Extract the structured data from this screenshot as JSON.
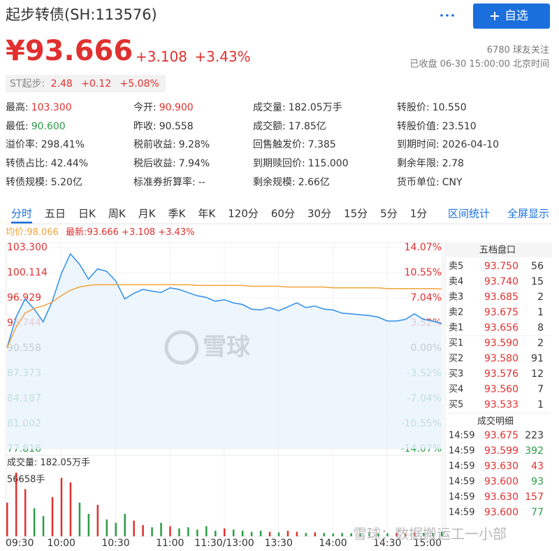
{
  "header": {
    "title": "起步转债(SH:113576)",
    "button": "自选",
    "followers": "6780 球友关注",
    "status": "已收盘 06-30 15:00:00 北京时间"
  },
  "quote": {
    "price": "¥93.666",
    "change": "+3.108",
    "percent": "+3.43%"
  },
  "underlying": {
    "label": "ST起步:",
    "price": "2.48",
    "change": "+0.12",
    "percent": "+5.08%"
  },
  "stats": [
    {
      "label": "最高:",
      "value": "103.300",
      "color": "#e0302f"
    },
    {
      "label": "今开:",
      "value": "90.900",
      "color": "#e0302f"
    },
    {
      "label": "成交量:",
      "value": "182.05万手",
      "color": "#333333"
    },
    {
      "label": "转股价:",
      "value": "10.550",
      "color": "#333333"
    },
    {
      "label": "最低:",
      "value": "90.600",
      "color": "#2a9d46"
    },
    {
      "label": "昨收:",
      "value": "90.558",
      "color": "#333333"
    },
    {
      "label": "成交额:",
      "value": "17.85亿",
      "color": "#333333"
    },
    {
      "label": "转股价值:",
      "value": "23.510",
      "color": "#333333"
    },
    {
      "label": "溢价率:",
      "value": "298.41%",
      "color": "#333333"
    },
    {
      "label": "税前收益:",
      "value": "9.28%",
      "color": "#333333"
    },
    {
      "label": "回售触发价:",
      "value": "7.385",
      "color": "#333333"
    },
    {
      "label": "到期时间:",
      "value": "2026-04-10",
      "color": "#333333"
    },
    {
      "label": "转债占比:",
      "value": "42.44%",
      "color": "#333333"
    },
    {
      "label": "税后收益:",
      "value": "7.94%",
      "color": "#333333"
    },
    {
      "label": "到期赎回价:",
      "value": "115.000",
      "color": "#333333"
    },
    {
      "label": "剩余年限:",
      "value": "2.78",
      "color": "#333333"
    },
    {
      "label": "转债规模:",
      "value": "5.20亿",
      "color": "#333333"
    },
    {
      "label": "标准券折算率:",
      "value": "--",
      "color": "#333333"
    },
    {
      "label": "剩余规模:",
      "value": "2.66亿",
      "color": "#333333"
    },
    {
      "label": "货币单位:",
      "value": "CNY",
      "color": "#333333"
    }
  ],
  "tabs": {
    "items": [
      "分时",
      "五日",
      "日K",
      "周K",
      "月K",
      "季K",
      "年K",
      "120分",
      "60分",
      "30分",
      "15分",
      "5分",
      "1分"
    ],
    "active": 0,
    "links": [
      "区间统计",
      "全屏显示"
    ]
  },
  "chart_data": {
    "type": "line",
    "legend": {
      "average": "均价:98.066",
      "latest": "最新:93.666 +3.108 +3.43%"
    },
    "x": [
      0,
      5,
      10,
      15,
      20,
      25,
      30,
      35,
      40,
      45,
      50,
      55,
      60,
      65,
      70,
      75,
      80,
      85,
      90,
      95,
      100,
      105,
      110,
      115,
      120,
      125,
      130,
      135,
      140,
      145,
      150,
      155,
      160,
      165,
      170,
      175,
      180,
      185,
      190,
      195,
      200,
      205,
      210,
      215,
      220,
      225,
      230,
      235,
      240
    ],
    "xlim": [
      0,
      240
    ],
    "xticks": [
      {
        "value": 0,
        "label": "09:30"
      },
      {
        "value": 30,
        "label": "10:00"
      },
      {
        "value": 60,
        "label": "10:30"
      },
      {
        "value": 90,
        "label": "11:00"
      },
      {
        "value": 120,
        "label": "11:30/13:00"
      },
      {
        "value": 150,
        "label": "13:30"
      },
      {
        "value": 180,
        "label": "14:00"
      },
      {
        "value": 210,
        "label": "14:30"
      },
      {
        "value": 240,
        "label": "15:00"
      }
    ],
    "ylim": [
      77.816,
      103.3
    ],
    "yticks": [
      {
        "value": 103.3,
        "label": "103.300"
      },
      {
        "value": 100.114,
        "label": "100.114"
      },
      {
        "value": 96.929,
        "label": "96.929"
      },
      {
        "value": 93.744,
        "label": "93.744"
      },
      {
        "value": 90.558,
        "label": "90.558"
      },
      {
        "value": 87.373,
        "label": "87.373"
      },
      {
        "value": 84.187,
        "label": "84.187"
      },
      {
        "value": 81.002,
        "label": "81.002"
      },
      {
        "value": 77.816,
        "label": "77.816"
      }
    ],
    "y2lim": [
      -14.07,
      14.07
    ],
    "y2ticks": [
      {
        "value": 14.07,
        "label": "14.07%"
      },
      {
        "value": 10.55,
        "label": "10.55%"
      },
      {
        "value": 7.04,
        "label": "7.04%"
      },
      {
        "value": 3.52,
        "label": "3.52%"
      },
      {
        "value": 0,
        "label": "0.00%"
      },
      {
        "value": -3.52,
        "label": "-3.52%"
      },
      {
        "value": -7.04,
        "label": "-7.04%"
      },
      {
        "value": -10.55,
        "label": "-10.55%"
      },
      {
        "value": -14.07,
        "label": "-14.07%"
      }
    ],
    "series": [
      {
        "color": "#2f8fe8",
        "values": [
          90.6,
          94.5,
          96.8,
          95.5,
          93.9,
          96.5,
          100.0,
          102.5,
          101.2,
          99.3,
          100.6,
          100.3,
          99.1,
          96.8,
          97.5,
          98.0,
          97.8,
          97.6,
          98.2,
          98.0,
          97.6,
          97.2,
          97.0,
          96.5,
          96.7,
          96.3,
          96.1,
          95.5,
          95.4,
          95.7,
          95.3,
          95.8,
          96.3,
          95.7,
          95.9,
          95.5,
          95.4,
          95.0,
          94.9,
          94.8,
          94.7,
          94.5,
          94.0,
          94.0,
          94.2,
          94.9,
          94.2,
          94.0,
          93.666
        ]
      },
      {
        "color": "#f2a33a",
        "values": [
          90.6,
          93.2,
          95.0,
          95.6,
          95.9,
          96.4,
          97.2,
          97.9,
          98.3,
          98.5,
          98.6,
          98.6,
          98.6,
          98.6,
          98.6,
          98.6,
          98.6,
          98.6,
          98.6,
          98.6,
          98.6,
          98.5,
          98.5,
          98.5,
          98.5,
          98.5,
          98.5,
          98.4,
          98.4,
          98.4,
          98.4,
          98.3,
          98.3,
          98.3,
          98.3,
          98.3,
          98.2,
          98.2,
          98.2,
          98.2,
          98.2,
          98.2,
          98.1,
          98.1,
          98.1,
          98.1,
          98.1,
          98.1,
          98.066
        ]
      }
    ],
    "volume": {
      "title": "成交量: 182.05万手",
      "ylim": [
        0,
        56658
      ],
      "yticks": [
        {
          "value": 56658,
          "label": "56658手"
        }
      ],
      "up_color": "#e0302f",
      "down_color": "#2a9d46",
      "values": [
        30000,
        56658,
        42000,
        25000,
        18000,
        35000,
        52000,
        48000,
        30000,
        20000,
        28000,
        15000,
        12000,
        20000,
        14000,
        10000,
        8000,
        12000,
        9000,
        7000,
        8000,
        6000,
        9000,
        5000,
        7000,
        6000,
        5000,
        4000,
        5000,
        4000,
        3500,
        5000,
        4000,
        3000,
        3500,
        3000,
        2500,
        3000,
        2800,
        2500,
        3000,
        2600,
        2800,
        3000,
        2500,
        3500,
        3000,
        3200,
        4000
      ]
    }
  },
  "order_book": {
    "title": "五档盘口",
    "asks": [
      {
        "label": "卖5",
        "price": "93.750",
        "volume": 56
      },
      {
        "label": "卖4",
        "price": "93.740",
        "volume": 15
      },
      {
        "label": "卖3",
        "price": "93.685",
        "volume": 2
      },
      {
        "label": "卖2",
        "price": "93.675",
        "volume": 1
      },
      {
        "label": "卖1",
        "price": "93.656",
        "volume": 8
      }
    ],
    "bids": [
      {
        "label": "买1",
        "price": "93.590",
        "volume": 2
      },
      {
        "label": "买2",
        "price": "93.580",
        "volume": 91
      },
      {
        "label": "买3",
        "price": "93.576",
        "volume": 12
      },
      {
        "label": "买4",
        "price": "93.560",
        "volume": 7
      },
      {
        "label": "买5",
        "price": "93.533",
        "volume": 1
      }
    ]
  },
  "trades": {
    "title": "成交明细",
    "rows": [
      {
        "time": "14:59",
        "price": "93.675",
        "volume": 223,
        "color": "#333333"
      },
      {
        "time": "14:59",
        "price": "93.599",
        "volume": 392,
        "color": "#2a9d46"
      },
      {
        "time": "14:59",
        "price": "93.630",
        "volume": 43,
        "color": "#e0302f"
      },
      {
        "time": "14:59",
        "price": "93.600",
        "volume": 93,
        "color": "#2a9d46"
      },
      {
        "time": "14:59",
        "price": "93.630",
        "volume": 157,
        "color": "#e0302f"
      },
      {
        "time": "14:59",
        "price": "93.600",
        "volume": 77,
        "color": "#2a9d46"
      }
    ]
  },
  "watermark": {
    "logo": "雪球",
    "footer": "雪球：数据搬运工一小部"
  }
}
